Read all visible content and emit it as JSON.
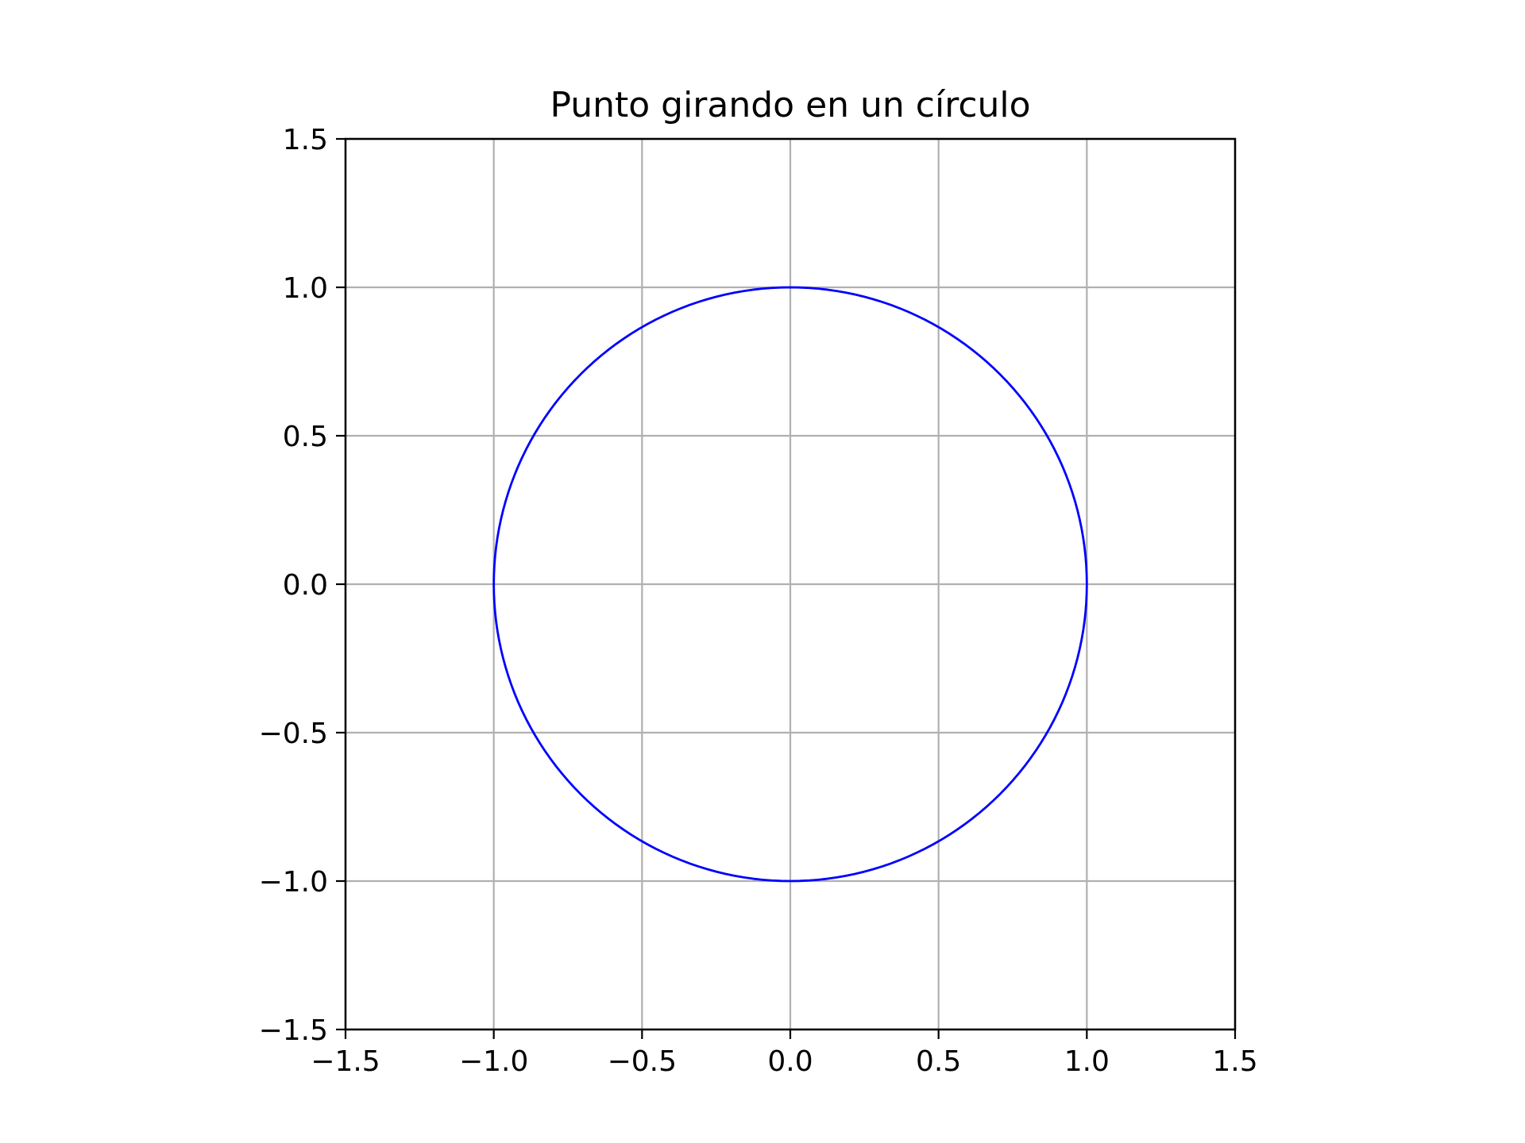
{
  "chart_data": {
    "type": "line",
    "title": "Punto girando en un círculo",
    "xlabel": "",
    "ylabel": "",
    "xlim": [
      -1.5,
      1.5
    ],
    "ylim": [
      -1.5,
      1.5
    ],
    "x_ticks": [
      -1.5,
      -1.0,
      -0.5,
      0.0,
      0.5,
      1.0,
      1.5
    ],
    "y_ticks": [
      -1.5,
      -1.0,
      -0.5,
      0.0,
      0.5,
      1.0,
      1.5
    ],
    "x_tick_labels": [
      "−1.5",
      "−1.0",
      "−0.5",
      "0.0",
      "0.5",
      "1.0",
      "1.5"
    ],
    "y_tick_labels": [
      "−1.5",
      "−1.0",
      "−0.5",
      "0.0",
      "0.5",
      "1.0",
      "1.5"
    ],
    "grid": true,
    "legend": "none",
    "series": [
      {
        "shape": "circle",
        "center": [
          0.0,
          0.0
        ],
        "radius": 1.0,
        "color": "#0000ff"
      }
    ],
    "colors": {
      "grid": "#b0b0b0",
      "axes": "#000000",
      "series": "#0000ff"
    }
  }
}
